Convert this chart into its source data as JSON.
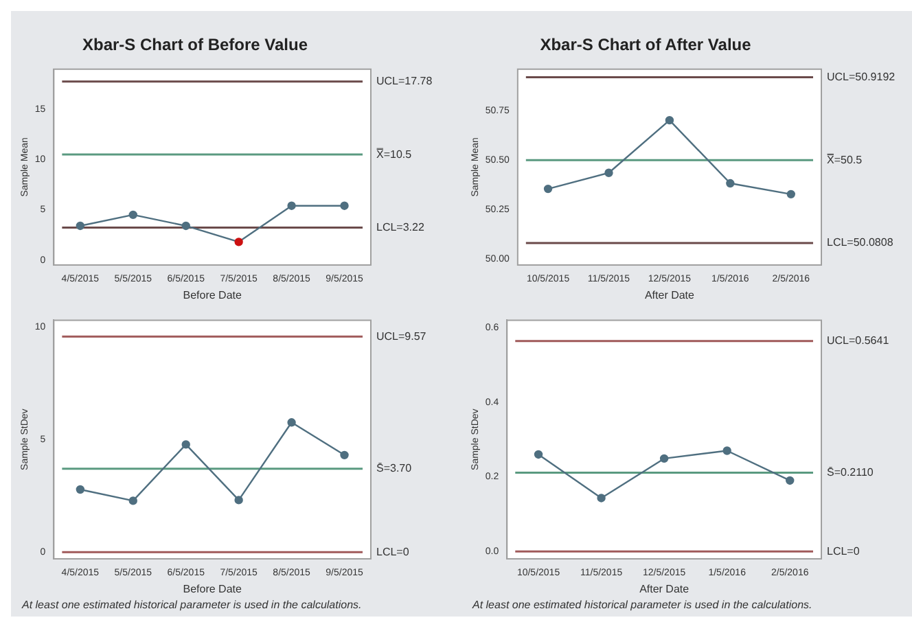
{
  "chart_data": [
    {
      "type": "line",
      "title": "Xbar-S Chart of Before Value",
      "xlabel": "Before Date",
      "ylabel": "Sample Mean",
      "categories": [
        "4/5/2015",
        "5/5/2015",
        "6/5/2015",
        "7/5/2015",
        "8/5/2015",
        "9/5/2015"
      ],
      "series": [
        {
          "color": "#4f6f80",
          "colors": [
            "#4f6f80",
            "#4f6f80",
            "#4f6f80",
            "#cc1111",
            "#4f6f80",
            "#4f6f80"
          ],
          "values": [
            3.4,
            4.5,
            3.4,
            1.8,
            5.4,
            5.4
          ]
        }
      ],
      "ylim": [
        -0.5,
        19
      ],
      "yticks": [
        0,
        5,
        10,
        15
      ],
      "marker": "circle",
      "grid": false,
      "ref_lines": [
        {
          "axis": "y",
          "value": 17.78,
          "label": "UCL=17.78",
          "color": "#6a4a4a"
        },
        {
          "axis": "y",
          "value": 10.5,
          "label": "X̿=10.5",
          "color": "#5a9a80"
        },
        {
          "axis": "y",
          "value": 3.22,
          "label": "LCL=3.22",
          "color": "#6a4a4a"
        }
      ]
    },
    {
      "type": "line",
      "title": "Xbar-S Chart of After Value",
      "xlabel": "After Date",
      "ylabel": "Sample Mean",
      "categories": [
        "10/5/2015",
        "11/5/2015",
        "12/5/2015",
        "1/5/2016",
        "2/5/2016"
      ],
      "series": [
        {
          "color": "#4f6f80",
          "values": [
            50.355,
            50.436,
            50.702,
            50.383,
            50.328
          ]
        }
      ],
      "ylim": [
        49.97,
        50.96
      ],
      "yticks": [
        {
          "value": 50,
          "label": "50.00"
        },
        {
          "value": 50.25,
          "label": "50.25"
        },
        {
          "value": 50.5,
          "label": "50.50"
        },
        {
          "value": 50.75,
          "label": "50.75"
        }
      ],
      "marker": "circle",
      "grid": false,
      "ref_lines": [
        {
          "axis": "y",
          "value": 50.9192,
          "label": "UCL=50.9192",
          "color": "#6a4a4a"
        },
        {
          "axis": "y",
          "value": 50.5,
          "label": "X̿=50.5",
          "color": "#5a9a80"
        },
        {
          "axis": "y",
          "value": 50.0808,
          "label": "LCL=50.0808",
          "color": "#6a4a4a"
        }
      ]
    },
    {
      "type": "line",
      "xlabel": "Before Date",
      "ylabel": "Sample StDev",
      "categories": [
        "4/5/2015",
        "5/5/2015",
        "6/5/2015",
        "7/5/2015",
        "8/5/2015",
        "9/5/2015"
      ],
      "series": [
        {
          "color": "#4f6f80",
          "values": [
            2.78,
            2.28,
            4.78,
            2.31,
            5.76,
            4.31
          ]
        }
      ],
      "ylim": [
        -0.3,
        10.3
      ],
      "yticks": [
        0,
        5,
        10
      ],
      "marker": "circle",
      "grid": false,
      "ref_lines": [
        {
          "axis": "y",
          "value": 9.57,
          "label": "UCL=9.57",
          "color": "#a05a5a"
        },
        {
          "axis": "y",
          "value": 3.7,
          "label": "S̄=3.70",
          "color": "#5a9a80"
        },
        {
          "axis": "y",
          "value": 0,
          "label": "LCL=0",
          "color": "#a05a5a"
        }
      ],
      "annotations": [
        "At least one estimated historical parameter is used in the calculations."
      ]
    },
    {
      "type": "line",
      "xlabel": "After Date",
      "ylabel": "Sample StDev",
      "categories": [
        "10/5/2015",
        "11/5/2015",
        "12/5/2015",
        "1/5/2016",
        "2/5/2016"
      ],
      "series": [
        {
          "color": "#4f6f80",
          "values": [
            0.26,
            0.143,
            0.249,
            0.27,
            0.19
          ]
        }
      ],
      "ylim": [
        -0.02,
        0.62
      ],
      "yticks": [
        {
          "value": 0,
          "label": "0.0"
        },
        {
          "value": 0.2,
          "label": "0.2"
        },
        {
          "value": 0.4,
          "label": "0.4"
        },
        {
          "value": 0.6,
          "label": "0.6"
        }
      ],
      "marker": "circle",
      "grid": false,
      "ref_lines": [
        {
          "axis": "y",
          "value": 0.5641,
          "label": "UCL=0.5641",
          "color": "#a05a5a"
        },
        {
          "axis": "y",
          "value": 0.211,
          "label": "S̄=0.2110",
          "color": "#5a9a80"
        },
        {
          "axis": "y",
          "value": 0,
          "label": "LCL=0",
          "color": "#a05a5a"
        }
      ],
      "annotations": [
        "At least one estimated historical parameter is used in the calculations."
      ]
    }
  ]
}
